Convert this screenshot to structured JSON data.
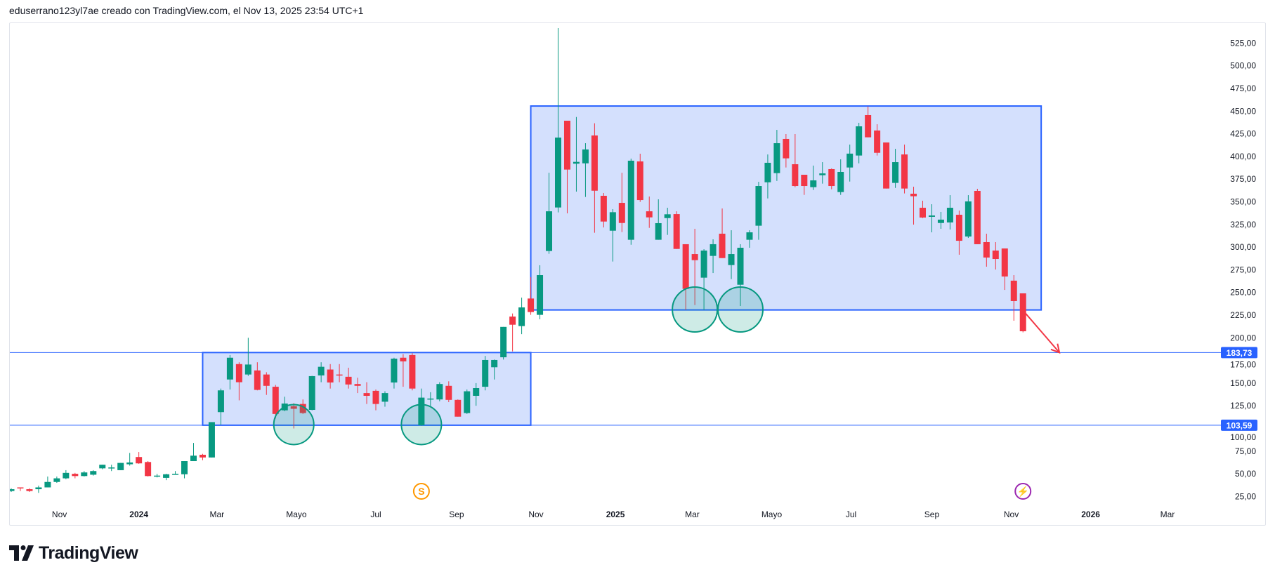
{
  "header": {
    "caption": "eduserrano123yl7ae creado con TradingView.com, el Nov 13, 2025 23:54 UTC+1"
  },
  "logo": {
    "text": "TradingView"
  },
  "colors": {
    "up": "#089981",
    "down": "#f23645",
    "drawing_blue": "#2962ff",
    "rect_fill": "#d4e0fd",
    "circle": "#089981",
    "arrow": "#f23645",
    "dividend_icon": "#ff9800",
    "earnings_icon": "#9c27b0"
  },
  "chart_data": {
    "type": "candlestick",
    "interval": "1W",
    "ylim": [
      10,
      550
    ],
    "price_ticks": [
      "25,00",
      "50,00",
      "75,00",
      "100,00",
      "125,00",
      "150,00",
      "175,00",
      "200,00",
      "225,00",
      "250,00",
      "275,00",
      "300,00",
      "325,00",
      "350,00",
      "375,00",
      "400,00",
      "425,00",
      "450,00",
      "475,00",
      "500,00",
      "525,00"
    ],
    "time_ticks": [
      {
        "label": "Nov",
        "date": "2023-11-01",
        "year": false
      },
      {
        "label": "2024",
        "date": "2024-01-01",
        "year": true
      },
      {
        "label": "Mar",
        "date": "2024-03-01",
        "year": false
      },
      {
        "label": "Mayo",
        "date": "2024-05-01",
        "year": false
      },
      {
        "label": "Jul",
        "date": "2024-07-01",
        "year": false
      },
      {
        "label": "Sep",
        "date": "2024-09-01",
        "year": false
      },
      {
        "label": "Nov",
        "date": "2024-11-01",
        "year": false
      },
      {
        "label": "2025",
        "date": "2025-01-01",
        "year": true
      },
      {
        "label": "Mar",
        "date": "2025-03-01",
        "year": false
      },
      {
        "label": "Mayo",
        "date": "2025-05-01",
        "year": false
      },
      {
        "label": "Jul",
        "date": "2025-07-01",
        "year": false
      },
      {
        "label": "Sep",
        "date": "2025-09-01",
        "year": false
      },
      {
        "label": "Nov",
        "date": "2025-11-01",
        "year": false
      },
      {
        "label": "2026",
        "date": "2026-01-01",
        "year": true
      },
      {
        "label": "Mar",
        "date": "2026-03-01",
        "year": false
      }
    ],
    "candles_columns": [
      "date",
      "open",
      "high",
      "low",
      "close"
    ],
    "candles": [
      [
        "2023-09-25",
        31,
        34,
        30,
        33
      ],
      [
        "2023-10-02",
        35,
        35,
        31,
        34.5
      ],
      [
        "2023-10-09",
        33,
        34,
        30,
        31
      ],
      [
        "2023-10-16",
        33,
        37,
        29,
        35
      ],
      [
        "2023-10-23",
        35,
        47,
        35,
        41
      ],
      [
        "2023-10-30",
        41,
        47,
        40,
        45
      ],
      [
        "2023-11-06",
        45,
        54,
        44,
        51
      ],
      [
        "2023-11-13",
        50,
        51,
        45,
        47.5
      ],
      [
        "2023-11-20",
        47.5,
        53,
        47,
        51.5
      ],
      [
        "2023-11-27",
        49,
        54,
        48,
        53
      ],
      [
        "2023-12-04",
        56,
        60,
        55,
        60
      ],
      [
        "2023-12-11",
        57,
        60,
        53,
        57
      ],
      [
        "2023-12-18",
        54,
        62,
        54,
        62
      ],
      [
        "2023-12-25",
        60.5,
        73,
        59,
        62.5
      ],
      [
        "2024-01-01",
        68.5,
        74,
        61,
        61.5
      ],
      [
        "2024-01-08",
        63,
        64,
        47,
        47.5
      ],
      [
        "2024-01-15",
        47.5,
        50,
        46,
        48
      ],
      [
        "2024-01-22",
        45.5,
        50,
        43,
        49.5
      ],
      [
        "2024-01-29",
        49.5,
        53,
        49,
        50
      ],
      [
        "2024-02-05",
        49.5,
        64,
        45,
        64
      ],
      [
        "2024-02-12",
        64,
        84,
        64,
        70
      ],
      [
        "2024-02-19",
        71,
        72,
        65,
        68
      ],
      [
        "2024-02-26",
        68,
        107,
        68,
        107
      ],
      [
        "2024-03-04",
        118,
        144,
        104,
        142
      ],
      [
        "2024-03-11",
        154,
        181,
        143,
        178
      ],
      [
        "2024-03-18",
        171,
        173,
        131,
        151
      ],
      [
        "2024-03-25",
        159.5,
        200,
        158,
        170.5
      ],
      [
        "2024-04-01",
        164,
        173,
        142,
        142.5
      ],
      [
        "2024-04-08",
        159.5,
        162,
        137,
        147
      ],
      [
        "2024-04-15",
        146,
        148,
        111,
        116
      ],
      [
        "2024-04-22",
        120,
        135,
        119,
        127.5
      ],
      [
        "2024-04-29",
        124.5,
        128,
        100,
        121.7
      ],
      [
        "2024-05-06",
        127,
        132,
        116,
        117
      ],
      [
        "2024-05-13",
        120.5,
        158,
        120,
        157.7
      ],
      [
        "2024-05-20",
        158.5,
        173,
        151,
        168
      ],
      [
        "2024-05-27",
        165,
        171,
        144,
        150.7
      ],
      [
        "2024-06-03",
        159.5,
        171,
        151,
        159
      ],
      [
        "2024-06-10",
        157,
        167,
        144,
        148.5
      ],
      [
        "2024-06-17",
        149,
        156,
        139,
        147
      ],
      [
        "2024-06-24",
        139,
        151,
        127,
        136
      ],
      [
        "2024-07-01",
        141.5,
        143,
        120,
        127
      ],
      [
        "2024-07-08",
        129.5,
        141,
        124,
        139
      ],
      [
        "2024-07-15",
        150.7,
        178,
        144,
        177
      ],
      [
        "2024-07-22",
        178,
        182,
        146,
        174
      ],
      [
        "2024-07-29",
        181,
        183,
        142,
        144
      ],
      [
        "2024-08-05",
        103.5,
        144,
        103,
        134
      ],
      [
        "2024-08-12",
        133,
        140,
        125,
        133
      ],
      [
        "2024-08-19",
        132,
        151,
        130,
        149
      ],
      [
        "2024-08-26",
        147,
        152,
        129,
        131.5
      ],
      [
        "2024-09-02",
        131.5,
        132,
        113,
        113
      ],
      [
        "2024-09-09",
        117,
        143,
        116,
        141
      ],
      [
        "2024-09-16",
        136,
        150,
        125,
        144.5
      ],
      [
        "2024-09-23",
        146,
        180,
        142,
        175.5
      ],
      [
        "2024-09-30",
        167.5,
        176,
        154,
        175.5
      ],
      [
        "2024-10-07",
        178.5,
        212,
        176,
        212
      ],
      [
        "2024-10-14",
        223.4,
        226.8,
        185,
        214.4
      ],
      [
        "2024-10-21",
        212.9,
        244.3,
        204,
        233.5
      ],
      [
        "2024-10-28",
        243.3,
        266.8,
        225.3,
        228.4
      ],
      [
        "2024-11-04",
        225.3,
        280,
        220.4,
        269.1
      ],
      [
        "2024-11-11",
        295.7,
        382,
        292.6,
        339.5
      ],
      [
        "2024-11-18",
        343.7,
        541.6,
        338.3,
        420.8
      ],
      [
        "2024-11-25",
        439.4,
        439.4,
        337.2,
        385.5
      ],
      [
        "2024-12-02",
        392,
        443.5,
        361.2,
        394
      ],
      [
        "2024-12-09",
        392.4,
        414.6,
        355.3,
        407.7
      ],
      [
        "2024-12-16",
        423.1,
        436.6,
        315.8,
        362.2
      ],
      [
        "2024-12-23",
        356.6,
        359.7,
        321.7,
        328.2
      ],
      [
        "2024-12-30",
        318.1,
        341.9,
        284.1,
        338.5
      ],
      [
        "2025-01-06",
        348.8,
        382,
        316.6,
        326.6
      ],
      [
        "2025-01-13",
        308.1,
        397.6,
        302.6,
        395.3
      ],
      [
        "2025-01-20",
        394.5,
        403,
        349.9,
        351.9
      ],
      [
        "2025-01-27",
        339.5,
        355.8,
        321.2,
        332.8
      ],
      [
        "2025-02-03",
        308.1,
        352.7,
        308.1,
        326.4
      ],
      [
        "2025-02-10",
        332,
        343.4,
        313.5,
        336.2
      ],
      [
        "2025-02-17",
        336.4,
        339.5,
        298,
        298
      ],
      [
        "2025-02-24",
        303.2,
        303.2,
        230.7,
        253.9
      ],
      [
        "2025-03-03",
        292.3,
        320.2,
        236.1,
        285.6
      ],
      [
        "2025-03-10",
        266.3,
        297.7,
        230.7,
        296.2
      ],
      [
        "2025-03-17",
        290.3,
        308.6,
        271.4,
        303.2
      ],
      [
        "2025-03-24",
        314.8,
        342.6,
        287.9,
        287.9
      ],
      [
        "2025-03-31",
        280.2,
        318.6,
        264.7,
        292.3
      ],
      [
        "2025-04-07",
        258.5,
        303.2,
        235.1,
        299.3
      ],
      [
        "2025-04-14",
        308.1,
        318.6,
        299.3,
        316.3
      ],
      [
        "2025-04-21",
        323.6,
        372,
        308.1,
        367.4
      ],
      [
        "2025-04-28",
        371.5,
        402.2,
        353.7,
        393
      ],
      [
        "2025-05-05",
        381.6,
        429.3,
        373,
        414.6
      ],
      [
        "2025-05-12",
        419.3,
        424.7,
        387.8,
        397.9
      ],
      [
        "2025-05-19",
        391.4,
        424.7,
        366,
        367.4
      ],
      [
        "2025-05-26",
        379.8,
        379.8,
        357.6,
        367.4
      ],
      [
        "2025-06-02",
        366.1,
        389.9,
        363,
        373.6
      ],
      [
        "2025-06-09",
        379.3,
        393.7,
        370,
        381.3
      ],
      [
        "2025-06-16",
        386,
        386.8,
        363.8,
        367.4
      ],
      [
        "2025-06-23",
        360.7,
        396.8,
        357.6,
        382.9
      ],
      [
        "2025-06-30",
        387.8,
        413.1,
        372.3,
        403.1
      ],
      [
        "2025-07-07",
        401,
        437.1,
        392.4,
        433.2
      ],
      [
        "2025-07-14",
        445.6,
        455.1,
        421.1,
        421.1
      ],
      [
        "2025-07-21",
        428.6,
        435.5,
        401,
        404
      ],
      [
        "2025-07-28",
        415.4,
        415.4,
        364.6,
        364.6
      ],
      [
        "2025-08-04",
        370.8,
        408.4,
        365.3,
        393.7
      ],
      [
        "2025-08-11",
        402.2,
        413.1,
        359.2,
        364.6
      ],
      [
        "2025-08-18",
        358.9,
        366.6,
        324.8,
        356.1
      ],
      [
        "2025-08-25",
        343.4,
        351.2,
        332,
        332.6
      ],
      [
        "2025-09-01",
        333.4,
        347.3,
        316.3,
        334.9
      ],
      [
        "2025-09-08",
        326.6,
        338.8,
        320.2,
        330.3
      ],
      [
        "2025-09-15",
        327.2,
        357.3,
        319.4,
        343.4
      ],
      [
        "2025-09-22",
        335.7,
        340.3,
        291.6,
        307
      ],
      [
        "2025-09-29",
        311.7,
        357.3,
        310.1,
        350.4
      ],
      [
        "2025-10-06",
        362,
        364.3,
        303.2,
        303.2
      ],
      [
        "2025-10-13",
        305.5,
        314.8,
        278.4,
        288.5
      ],
      [
        "2025-10-20",
        296.2,
        305.5,
        275.3,
        286.9
      ],
      [
        "2025-10-27",
        298.5,
        298.5,
        252.8,
        267.6
      ],
      [
        "2025-11-03",
        263,
        269.1,
        218.8,
        240.5
      ],
      [
        "2025-11-10",
        249,
        249,
        206,
        207.2
      ]
    ],
    "horizontal_lines": [
      {
        "price": 183.73,
        "label": "183,73"
      },
      {
        "price": 103.59,
        "label": "103,59"
      }
    ],
    "rectangles": [
      {
        "from": "2024-02-19",
        "to": "2024-10-28",
        "top": 183.73,
        "bottom": 103.59
      },
      {
        "from": "2024-10-28",
        "to": "2025-11-24",
        "top": 455.6,
        "bottom": 230.7
      }
    ],
    "circles": [
      {
        "date": "2024-04-29",
        "price": 104.3
      },
      {
        "date": "2024-08-05",
        "price": 104.3
      },
      {
        "date": "2025-03-03",
        "price": 231.2
      },
      {
        "date": "2025-04-07",
        "price": 231.2
      }
    ],
    "arrow": {
      "from_date": "2025-11-10",
      "from_price": 230.2,
      "to_date": "2025-12-08",
      "to_price": 183.7
    },
    "events": [
      {
        "type": "dividend",
        "date": "2024-08-05",
        "glyph": "S",
        "icon": "dividend-icon"
      },
      {
        "type": "earnings",
        "date": "2025-11-10",
        "glyph": "⚡",
        "icon": "earnings-icon"
      }
    ]
  }
}
